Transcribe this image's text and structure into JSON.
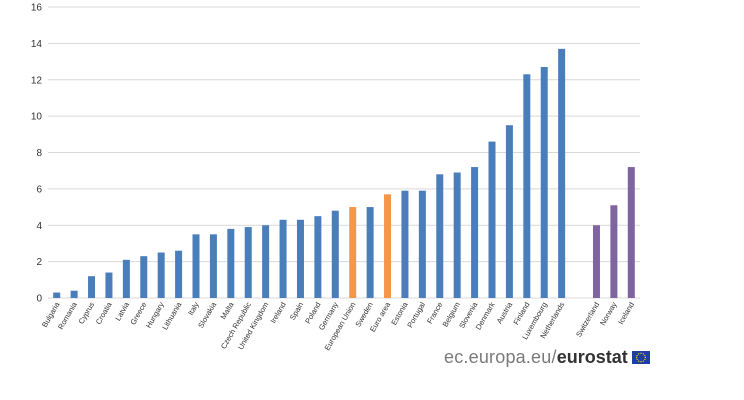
{
  "chart_data": {
    "type": "bar",
    "categories": [
      "Bulgaria",
      "Romania",
      "Cyprus",
      "Croatia",
      "Latvia",
      "Greece",
      "Hungary",
      "Lithuania",
      "Italy",
      "Slovakia",
      "Malta",
      "Czech Republic",
      "United Kingdom",
      "Ireland",
      "Spain",
      "Poland",
      "Germany",
      "European Union",
      "Sweden",
      "Euro area",
      "Estonia",
      "Portugal",
      "France",
      "Belgium",
      "Slovenia",
      "Denmark",
      "Austria",
      "Finland",
      "Luxembourg",
      "Netherlands",
      "",
      "Switzerland",
      "Norway",
      "Iceland"
    ],
    "values": [
      0.3,
      0.4,
      1.2,
      1.4,
      2.1,
      2.3,
      2.5,
      2.6,
      3.5,
      3.5,
      3.8,
      3.9,
      4.0,
      4.3,
      4.3,
      4.5,
      4.8,
      5.0,
      5.0,
      5.7,
      5.9,
      5.9,
      6.8,
      6.9,
      7.2,
      8.6,
      9.5,
      12.3,
      12.7,
      13.7,
      null,
      4.0,
      5.1,
      7.2
    ],
    "bar_groups": [
      "member",
      "member",
      "member",
      "member",
      "member",
      "member",
      "member",
      "member",
      "member",
      "member",
      "member",
      "member",
      "member",
      "member",
      "member",
      "member",
      "member",
      "aggregate",
      "member",
      "aggregate",
      "member",
      "member",
      "member",
      "member",
      "member",
      "member",
      "member",
      "member",
      "member",
      "member",
      "gap",
      "efta",
      "efta",
      "efta"
    ],
    "colors": {
      "member": "#4a7ebb",
      "aggregate": "#f79646",
      "efta": "#8064a2"
    },
    "ylim": [
      0,
      16
    ],
    "yticks": [
      0,
      2,
      4,
      6,
      8,
      10,
      12,
      14,
      16
    ],
    "grid": true,
    "title": "",
    "xlabel": "",
    "ylabel": ""
  },
  "branding": {
    "domain": "ec.europa.eu/",
    "name": "eurostat",
    "flag_icon": "eu-flag-icon"
  }
}
